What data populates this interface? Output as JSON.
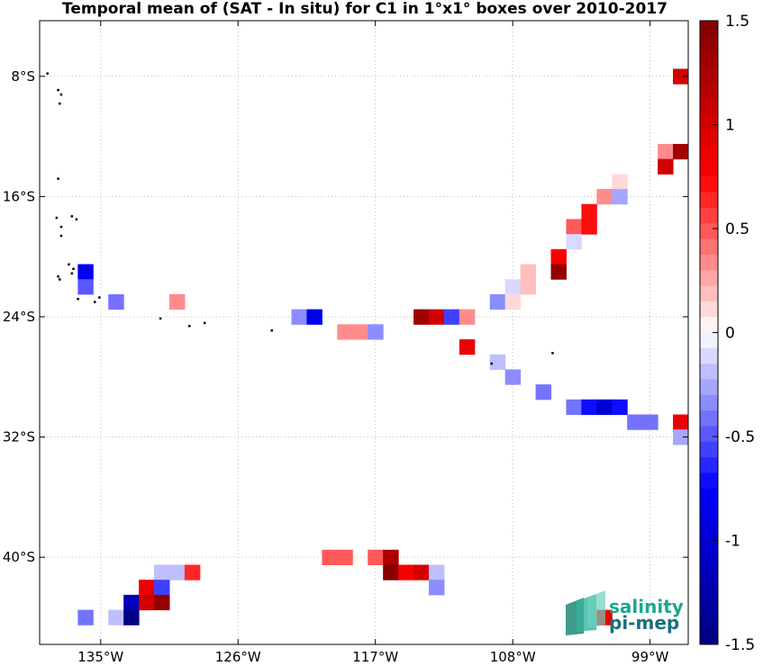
{
  "title": "Temporal mean of (SAT - In situ) for C1 in 1°x1° boxes over 2010-2017",
  "map": {
    "lon_range": [
      -139,
      -96.5
    ],
    "lat_range": [
      -45.8,
      -4.3
    ],
    "lon_ticks": [
      {
        "value": -135,
        "label": "135°W"
      },
      {
        "value": -126,
        "label": "126°W"
      },
      {
        "value": -117,
        "label": "117°W"
      },
      {
        "value": -108,
        "label": "108°W"
      },
      {
        "value": -99,
        "label": "99°W"
      }
    ],
    "lat_ticks": [
      {
        "value": -8,
        "label": "8°S"
      },
      {
        "value": -16,
        "label": "16°S"
      },
      {
        "value": -24,
        "label": "24°S"
      },
      {
        "value": -32,
        "label": "32°S"
      },
      {
        "value": -40,
        "label": "40°S"
      }
    ],
    "grid": true,
    "grid_style": "dotted"
  },
  "colorbar": {
    "range": [
      -1.5,
      1.5
    ],
    "levels": 40,
    "ticks": [
      {
        "value": 1.5,
        "label": "1.5"
      },
      {
        "value": 1,
        "label": "1"
      },
      {
        "value": 0.5,
        "label": "0.5"
      },
      {
        "value": 0,
        "label": "0"
      },
      {
        "value": -0.5,
        "label": "-0.5"
      },
      {
        "value": -1,
        "label": "-1"
      },
      {
        "value": -1.5,
        "label": "-1.5"
      }
    ],
    "colors": {
      "negative": "#000080",
      "zero": "#ffffff",
      "positive": "#800000"
    }
  },
  "logo": {
    "line1": "salinity",
    "line2": "pi-mep",
    "color1": "#1aa78f",
    "color2": "#1a6f7a"
  },
  "chart_data": {
    "type": "heatmap",
    "title": "Temporal mean of (SAT - In situ) for C1 in 1°x1° boxes over 2010-2017",
    "x_unit": "longitude",
    "y_unit": "latitude",
    "value_range": [
      -1.5,
      1.5
    ],
    "cells": [
      {
        "lon": -97,
        "lat": -8,
        "value": 1.0
      },
      {
        "lon": -98,
        "lat": -13,
        "value": 0.3
      },
      {
        "lon": -97,
        "lat": -13,
        "value": 1.3
      },
      {
        "lon": -98,
        "lat": -14,
        "value": 1.0
      },
      {
        "lon": -101,
        "lat": -15,
        "value": 0.15
      },
      {
        "lon": -102,
        "lat": -16,
        "value": 0.3
      },
      {
        "lon": -101,
        "lat": -16,
        "value": -0.25
      },
      {
        "lon": -103,
        "lat": -17,
        "value": 0.7
      },
      {
        "lon": -104,
        "lat": -18,
        "value": 0.5
      },
      {
        "lon": -103,
        "lat": -18,
        "value": 0.7
      },
      {
        "lon": -104,
        "lat": -19,
        "value": -0.15
      },
      {
        "lon": -105,
        "lat": -20,
        "value": 0.8
      },
      {
        "lon": -107,
        "lat": -21,
        "value": 0.2
      },
      {
        "lon": -105,
        "lat": -21,
        "value": 1.4
      },
      {
        "lon": -108,
        "lat": -22,
        "value": -0.1
      },
      {
        "lon": -107,
        "lat": -22,
        "value": 0.2
      },
      {
        "lon": -109,
        "lat": -23,
        "value": -0.3
      },
      {
        "lon": -108,
        "lat": -23,
        "value": 0.1
      },
      {
        "lon": -114,
        "lat": -24,
        "value": 1.3
      },
      {
        "lon": -113,
        "lat": -24,
        "value": 1.0
      },
      {
        "lon": -112,
        "lat": -24,
        "value": -0.6
      },
      {
        "lon": -111,
        "lat": -24,
        "value": 0.3
      },
      {
        "lon": -136,
        "lat": -21,
        "value": -0.8
      },
      {
        "lon": -136,
        "lat": -22,
        "value": -0.5
      },
      {
        "lon": -134,
        "lat": -23,
        "value": -0.45
      },
      {
        "lon": -130,
        "lat": -23,
        "value": 0.3
      },
      {
        "lon": -122,
        "lat": -24,
        "value": -0.3
      },
      {
        "lon": -121,
        "lat": -24,
        "value": -0.85
      },
      {
        "lon": -119,
        "lat": -25,
        "value": 0.3
      },
      {
        "lon": -118,
        "lat": -25,
        "value": 0.3
      },
      {
        "lon": -117,
        "lat": -25,
        "value": -0.3
      },
      {
        "lon": -111,
        "lat": -26,
        "value": 0.9
      },
      {
        "lon": -109,
        "lat": -27,
        "value": -0.2
      },
      {
        "lon": -108,
        "lat": -28,
        "value": -0.3
      },
      {
        "lon": -106,
        "lat": -29,
        "value": -0.45
      },
      {
        "lon": -104,
        "lat": -30,
        "value": -0.45
      },
      {
        "lon": -103,
        "lat": -30,
        "value": -0.75
      },
      {
        "lon": -102,
        "lat": -30,
        "value": -1.05
      },
      {
        "lon": -101,
        "lat": -30,
        "value": -0.7
      },
      {
        "lon": -100,
        "lat": -31,
        "value": -0.4
      },
      {
        "lon": -99,
        "lat": -31,
        "value": -0.4
      },
      {
        "lon": -97,
        "lat": -31,
        "value": 0.9
      },
      {
        "lon": -97,
        "lat": -32,
        "value": -0.25
      },
      {
        "lon": -120,
        "lat": -40,
        "value": 0.45
      },
      {
        "lon": -119,
        "lat": -40,
        "value": 0.45
      },
      {
        "lon": -117,
        "lat": -40,
        "value": 0.45
      },
      {
        "lon": -116,
        "lat": -40,
        "value": 1.2
      },
      {
        "lon": -116,
        "lat": -41,
        "value": 1.5
      },
      {
        "lon": -115,
        "lat": -41,
        "value": 0.8
      },
      {
        "lon": -114,
        "lat": -41,
        "value": 1.0
      },
      {
        "lon": -113,
        "lat": -41,
        "value": -0.2
      },
      {
        "lon": -113,
        "lat": -42,
        "value": -0.3
      },
      {
        "lon": -131,
        "lat": -41,
        "value": -0.2
      },
      {
        "lon": -130,
        "lat": -41,
        "value": -0.2
      },
      {
        "lon": -129,
        "lat": -41,
        "value": 0.6
      },
      {
        "lon": -132,
        "lat": -42,
        "value": 0.9
      },
      {
        "lon": -131,
        "lat": -42,
        "value": -0.6
      },
      {
        "lon": -133,
        "lat": -43,
        "value": -1.2
      },
      {
        "lon": -132,
        "lat": -43,
        "value": 1.0
      },
      {
        "lon": -131,
        "lat": -43,
        "value": 1.4
      },
      {
        "lon": -136,
        "lat": -44,
        "value": -0.45
      },
      {
        "lon": -134,
        "lat": -44,
        "value": -0.2
      },
      {
        "lon": -133,
        "lat": -44,
        "value": -1.55
      },
      {
        "lon": -102,
        "lat": -44,
        "value": 0.9
      }
    ],
    "islands": [
      [
        -138.5,
        -7.8
      ],
      [
        -137.8,
        -8.9
      ],
      [
        -137.6,
        -9.2
      ],
      [
        -137.7,
        -9.8
      ],
      [
        -137.8,
        -14.8
      ],
      [
        -137.9,
        -17.4
      ],
      [
        -137.6,
        -18.0
      ],
      [
        -136.9,
        -17.3
      ],
      [
        -136.6,
        -17.5
      ],
      [
        -137.6,
        -18.6
      ],
      [
        -137.1,
        -20.5
      ],
      [
        -136.8,
        -20.8
      ],
      [
        -136.9,
        -21.1
      ],
      [
        -137.8,
        -21.3
      ],
      [
        -137.7,
        -21.5
      ],
      [
        -135.1,
        -22.7
      ],
      [
        -135.4,
        -23.0
      ],
      [
        -136.5,
        -22.8
      ],
      [
        -131.1,
        -24.1
      ],
      [
        -129.2,
        -24.6
      ],
      [
        -128.2,
        -24.4
      ],
      [
        -123.8,
        -24.9
      ],
      [
        -109.4,
        -27.1
      ],
      [
        -105.4,
        -26.4
      ]
    ]
  }
}
